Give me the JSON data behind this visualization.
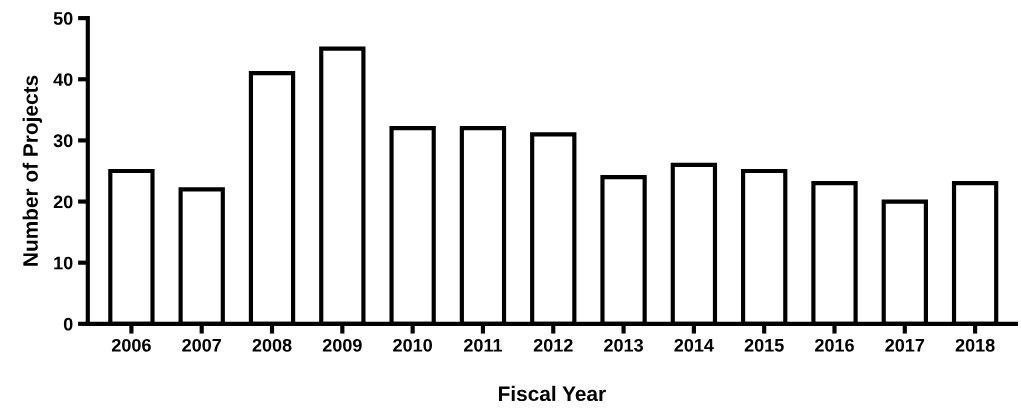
{
  "chart_data": {
    "type": "bar",
    "xlabel": "Fiscal Year",
    "ylabel": "Number of Projects",
    "categories": [
      "2006",
      "2007",
      "2008",
      "2009",
      "2010",
      "2011",
      "2012",
      "2013",
      "2014",
      "2015",
      "2016",
      "2017",
      "2018"
    ],
    "values": [
      25,
      22,
      41,
      45,
      32,
      32,
      31,
      24,
      26,
      25,
      23,
      20,
      23
    ],
    "color": "#ffffff",
    "ylim": [
      0,
      50
    ],
    "yticks": [
      0,
      10,
      20,
      30,
      40,
      50
    ],
    "grid": false,
    "legend": false
  }
}
